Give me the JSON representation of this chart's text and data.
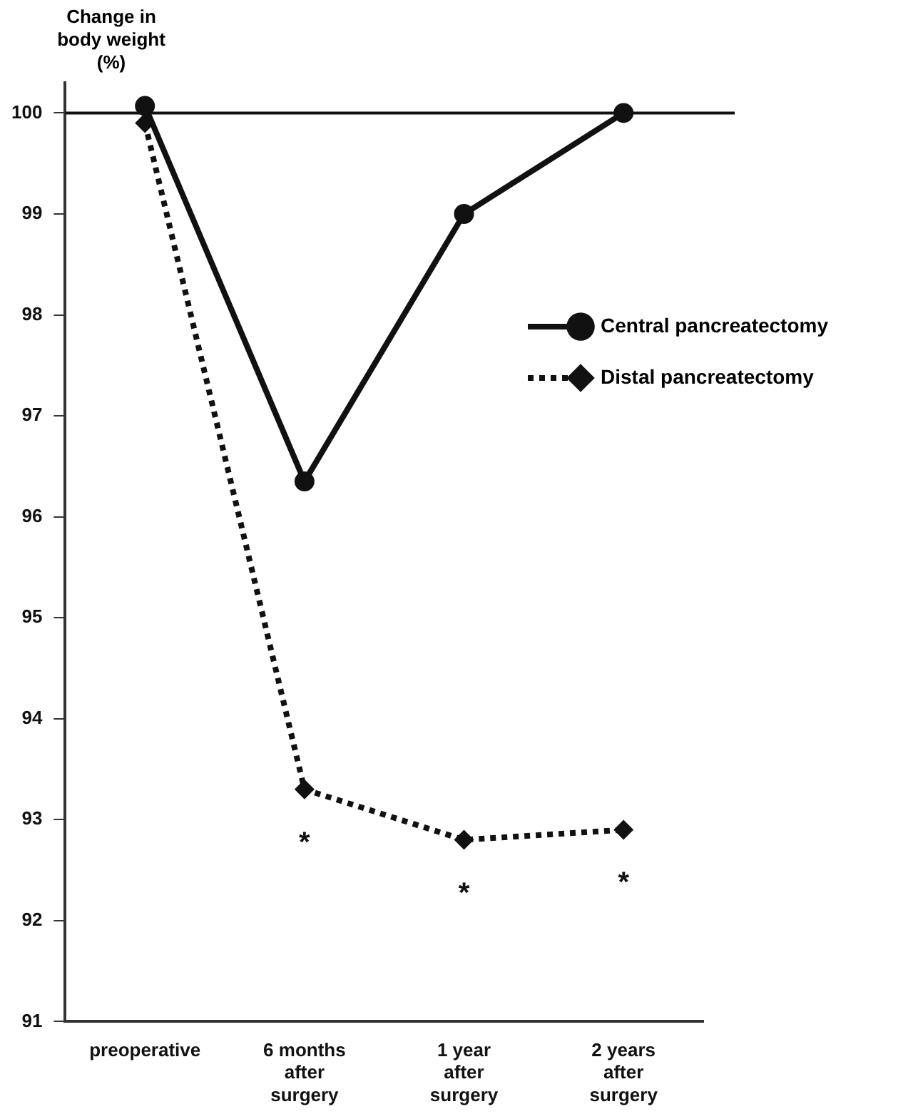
{
  "chart_data": {
    "type": "line",
    "ylabel": "Change in body weight (%)",
    "categories": [
      "preoperative",
      "6 months\nafter\nsurgery",
      "1 year\nafter\nsurgery",
      "2 years\nafter\nsurgery"
    ],
    "series": [
      {
        "name": "Central pancreatectomy",
        "color": "#111111",
        "values": [
          100.07,
          96.35,
          99.0,
          100.0
        ],
        "marker": "circle",
        "line_style": "solid"
      },
      {
        "name": "Distal pancreatectomy",
        "color": "#111111",
        "values": [
          99.9,
          93.3,
          92.8,
          92.9
        ],
        "marker": "diamond",
        "line_style": "dotted"
      }
    ],
    "ylim": [
      91,
      100.3
    ],
    "yticks": [
      91,
      92,
      93,
      94,
      95,
      96,
      97,
      98,
      99,
      100
    ],
    "ref_lines": [
      {
        "axis": "y",
        "value": 100,
        "color": "#111111"
      }
    ],
    "annotations": [
      "*",
      "*",
      "*"
    ],
    "legend": "right",
    "grid": false
  }
}
